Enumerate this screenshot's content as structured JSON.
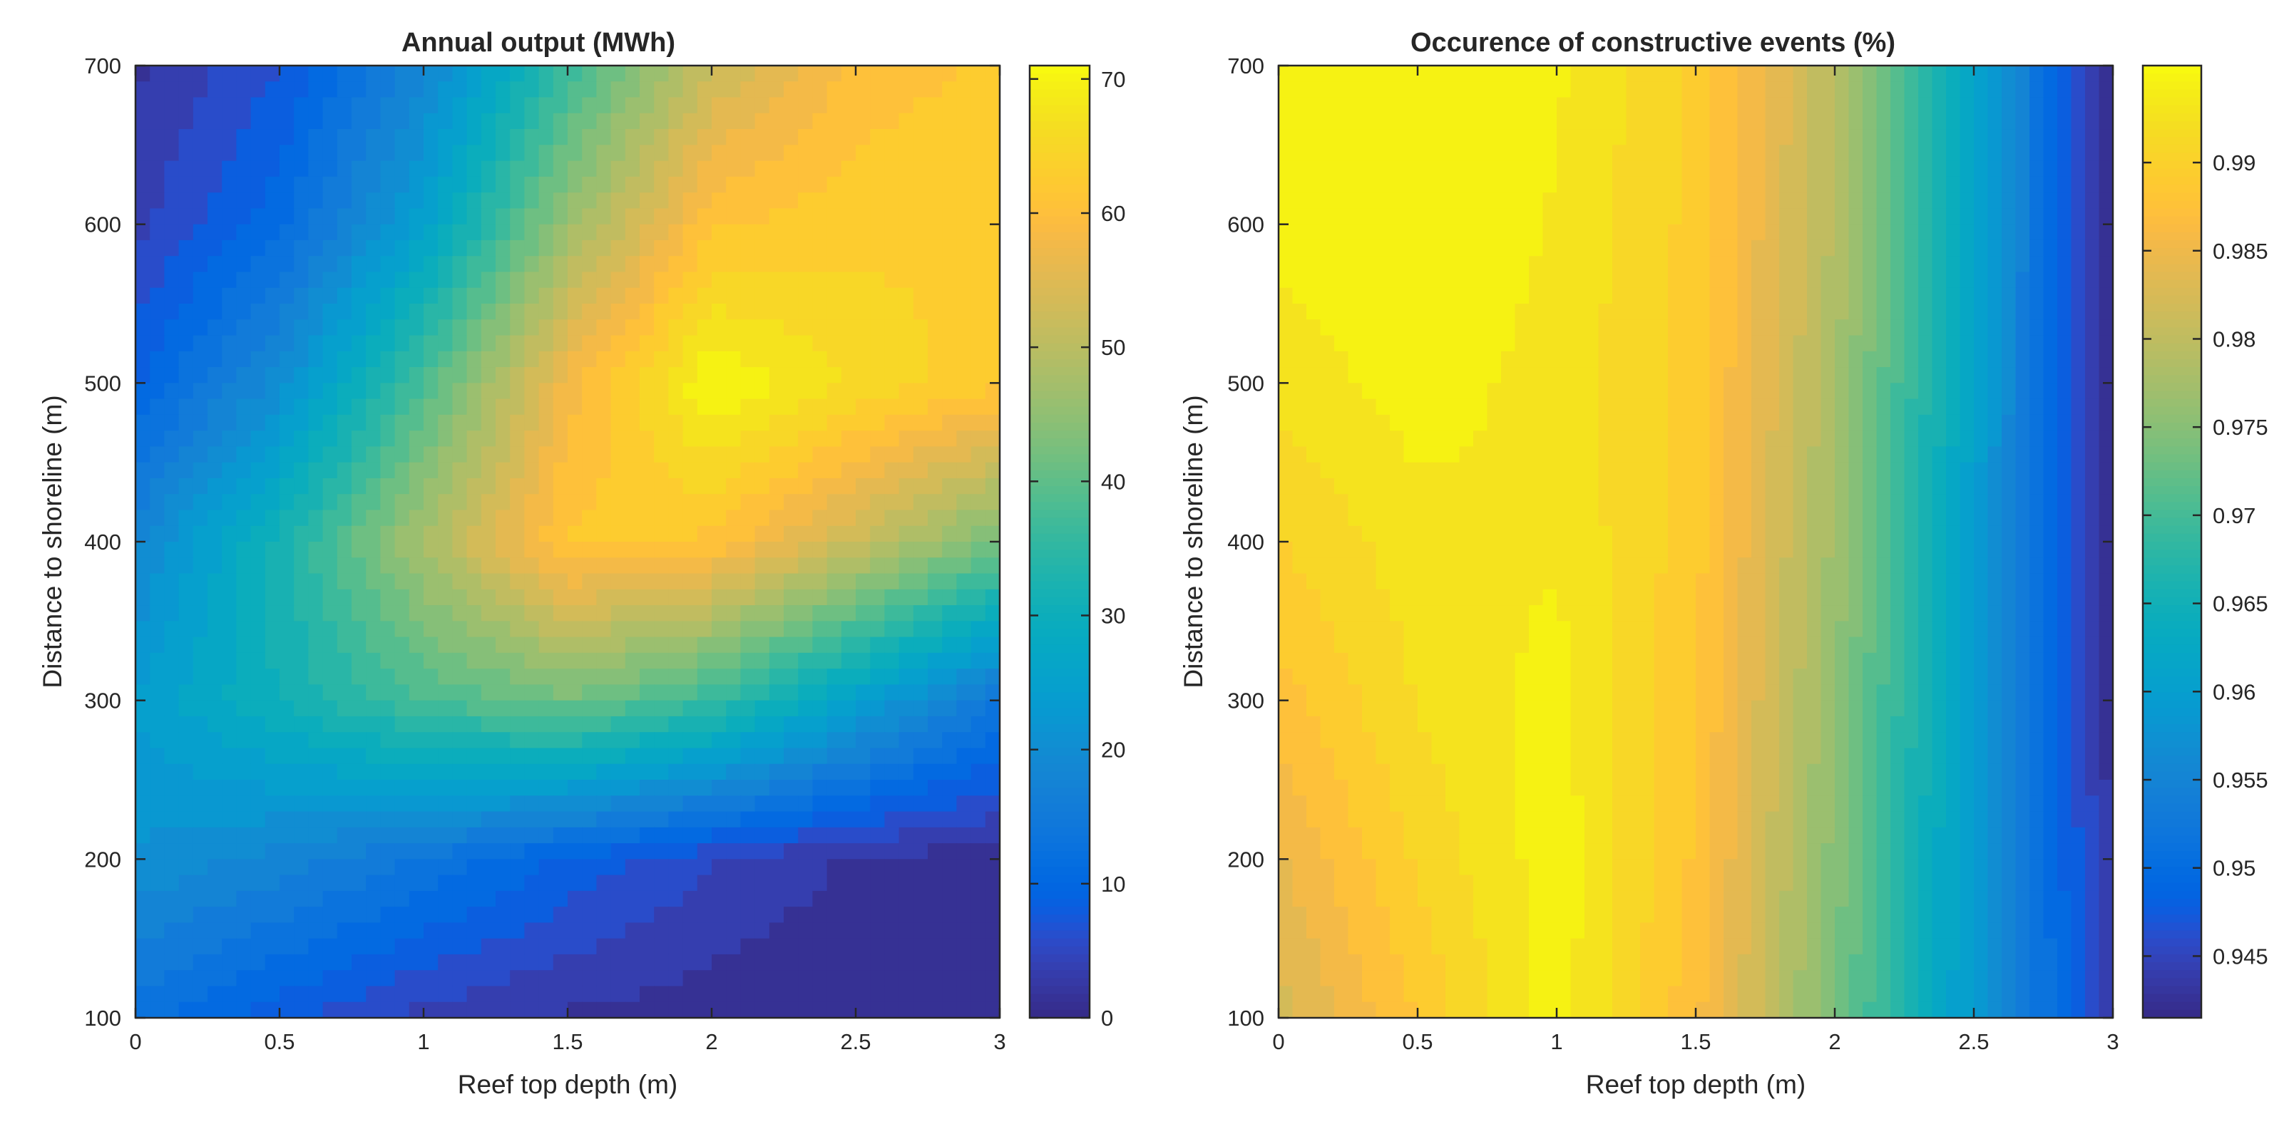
{
  "figure": {
    "description_colormap": "parula"
  },
  "chart_data": [
    {
      "type": "heatmap",
      "style": "filled-contour",
      "title": "Annual output (MWh)",
      "xlabel": "Reef top depth (m)",
      "ylabel": "Distance to shoreline (m)",
      "xlim": [
        0,
        3
      ],
      "ylim": [
        100,
        700
      ],
      "x": [
        0,
        0.5,
        1,
        1.5,
        2,
        2.5,
        3
      ],
      "y": [
        100,
        200,
        300,
        400,
        500,
        600,
        700
      ],
      "z_rows_by_y": [
        [
          13,
          8,
          4,
          2,
          1,
          0,
          0
        ],
        [
          21,
          18,
          14,
          9,
          5,
          2,
          1
        ],
        [
          24,
          31,
          38,
          42,
          36,
          25,
          14
        ],
        [
          18,
          32,
          48,
          62,
          61,
          52,
          42
        ],
        [
          9,
          20,
          38,
          58,
          71,
          66,
          62
        ],
        [
          4,
          11,
          25,
          46,
          61,
          63,
          64
        ],
        [
          2,
          7,
          18,
          36,
          52,
          60,
          62
        ]
      ],
      "xticks": [
        "0",
        "0.5",
        "1",
        "1.5",
        "2",
        "2.5",
        "3"
      ],
      "yticks": [
        "100",
        "200",
        "300",
        "400",
        "500",
        "600",
        "700"
      ],
      "colorbar": {
        "min": 0,
        "max": 71,
        "ticks": [
          0,
          10,
          20,
          30,
          40,
          50,
          60,
          70
        ],
        "tick_labels": [
          "0",
          "10",
          "20",
          "30",
          "40",
          "50",
          "60",
          "70"
        ]
      },
      "levels": 30
    },
    {
      "type": "heatmap",
      "style": "filled-contour",
      "title": "Occurence of constructive events (%)",
      "xlabel": "Reef top depth (m)",
      "ylabel": "Distance to shoreline (m)",
      "xlim": [
        0,
        3
      ],
      "ylim": [
        100,
        700
      ],
      "x": [
        0,
        0.5,
        1,
        1.5,
        2,
        2.5,
        3
      ],
      "y": [
        100,
        200,
        300,
        400,
        500,
        600,
        700
      ],
      "z_rows_by_y": [
        [
          0.982,
          0.9885,
          0.9948,
          0.987,
          0.974,
          0.959,
          0.944
        ],
        [
          0.9845,
          0.9905,
          0.9948,
          0.988,
          0.975,
          0.959,
          0.943
        ],
        [
          0.9875,
          0.992,
          0.9945,
          0.9885,
          0.976,
          0.9595,
          0.942
        ],
        [
          0.99,
          0.993,
          0.9935,
          0.989,
          0.977,
          0.96,
          0.9415
        ],
        [
          0.9925,
          0.9946,
          0.993,
          0.9893,
          0.978,
          0.961,
          0.941
        ],
        [
          0.9945,
          0.9955,
          0.9935,
          0.9895,
          0.979,
          0.9615,
          0.9405
        ],
        [
          0.9955,
          0.996,
          0.994,
          0.9898,
          0.9795,
          0.962,
          0.94
        ]
      ],
      "xticks": [
        "0",
        "0.5",
        "1",
        "1.5",
        "2",
        "2.5",
        "3"
      ],
      "yticks": [
        "100",
        "200",
        "300",
        "400",
        "500",
        "600",
        "700"
      ],
      "colorbar": {
        "min": 0.9415,
        "max": 0.9955,
        "ticks": [
          0.945,
          0.95,
          0.955,
          0.96,
          0.965,
          0.97,
          0.975,
          0.98,
          0.985,
          0.99
        ],
        "tick_labels": [
          "0.945",
          "0.95",
          "0.955",
          "0.96",
          "0.965",
          "0.97",
          "0.975",
          "0.98",
          "0.985",
          "0.99"
        ]
      },
      "levels": 30
    }
  ]
}
